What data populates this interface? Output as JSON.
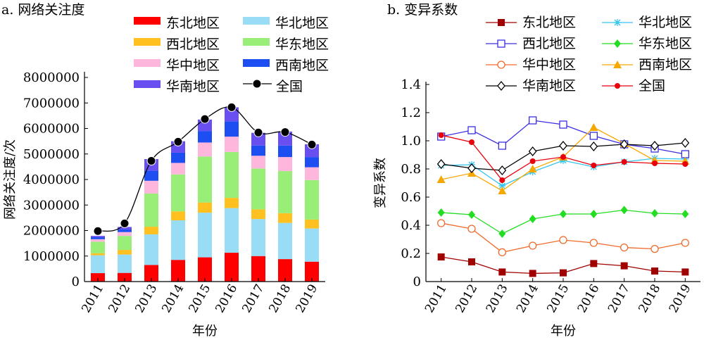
{
  "chart_data": [
    {
      "type": "bar",
      "stacked": true,
      "title": "a. 网络关注度",
      "xlabel": "年份",
      "ylabel": "网络关注度/次",
      "ylim": [
        0,
        8000000
      ],
      "yticks": [
        0,
        1000000,
        2000000,
        3000000,
        4000000,
        5000000,
        6000000,
        7000000,
        8000000
      ],
      "yticklabels": [
        "0",
        "1000000",
        "2000000",
        "3000000",
        "4000000",
        "5000000",
        "6000000",
        "7000000",
        "8000000"
      ],
      "categories": [
        "2011",
        "2012",
        "2013",
        "2014",
        "2015",
        "2016",
        "2017",
        "2018",
        "2019"
      ],
      "legend_position": "top-left",
      "series": [
        {
          "name": "东北地区",
          "color": "#ff0000",
          "values": [
            330000,
            340000,
            650000,
            850000,
            950000,
            1130000,
            1000000,
            880000,
            780000
          ]
        },
        {
          "name": "华北地区",
          "color": "#99dcf5",
          "values": [
            700000,
            720000,
            1200000,
            1550000,
            1750000,
            1750000,
            1450000,
            1420000,
            1300000
          ]
        },
        {
          "name": "西北地区",
          "color": "#ffc020",
          "values": [
            80000,
            180000,
            300000,
            350000,
            400000,
            400000,
            380000,
            380000,
            350000
          ]
        },
        {
          "name": "华东地区",
          "color": "#99ee77",
          "values": [
            450000,
            550000,
            1300000,
            1450000,
            1800000,
            1800000,
            1600000,
            1650000,
            1550000
          ]
        },
        {
          "name": "华中地区",
          "color": "#ffb6dc",
          "values": [
            100000,
            150000,
            500000,
            450000,
            550000,
            600000,
            500000,
            550000,
            500000
          ]
        },
        {
          "name": "西南地区",
          "color": "#1d4ef2",
          "values": [
            80000,
            100000,
            400000,
            400000,
            450000,
            600000,
            400000,
            450000,
            400000
          ]
        },
        {
          "name": "华南地区",
          "color": "#6a4ff0",
          "values": [
            50000,
            100000,
            450000,
            450000,
            450000,
            550000,
            500000,
            550000,
            500000
          ]
        }
      ],
      "line_series": {
        "name": "全国",
        "color": "#000000",
        "values": [
          1980000,
          2280000,
          4730000,
          5480000,
          6370000,
          6830000,
          5840000,
          5860000,
          5370000
        ]
      }
    },
    {
      "type": "line",
      "title": "b. 变异系数",
      "xlabel": "年份",
      "ylabel": "变异系数",
      "ylim": [
        0,
        1.4
      ],
      "yticks": [
        0,
        0.2,
        0.4,
        0.6,
        0.8,
        1.0,
        1.2,
        1.4
      ],
      "yticklabels": [
        "0",
        "0.2",
        "0.4",
        "0.6",
        "0.8",
        "1.0",
        "1.2",
        "1.4"
      ],
      "x": [
        "2011",
        "2012",
        "2013",
        "2014",
        "2015",
        "2016",
        "2017",
        "2018",
        "2019"
      ],
      "legend_position": "top",
      "series": [
        {
          "name": "东北地区",
          "color": "#a00000",
          "marker": "square-filled",
          "values": [
            0.175,
            0.14,
            0.068,
            0.058,
            0.062,
            0.128,
            0.112,
            0.075,
            0.068
          ]
        },
        {
          "name": "华北地区",
          "color": "#33c5ee",
          "marker": "asterisk",
          "values": [
            0.825,
            0.83,
            0.68,
            0.78,
            0.86,
            0.815,
            0.85,
            0.875,
            0.87
          ]
        },
        {
          "name": "西北地区",
          "color": "#3a2ee0",
          "marker": "square-open",
          "values": [
            1.03,
            1.075,
            0.965,
            1.145,
            1.115,
            1.035,
            0.975,
            0.945,
            0.905
          ]
        },
        {
          "name": "华东地区",
          "color": "#22dd22",
          "marker": "diamond-filled",
          "values": [
            0.49,
            0.475,
            0.34,
            0.445,
            0.48,
            0.48,
            0.508,
            0.485,
            0.48
          ]
        },
        {
          "name": "华中地区",
          "color": "#f06a2a",
          "marker": "circle-open",
          "values": [
            0.415,
            0.375,
            0.208,
            0.255,
            0.295,
            0.275,
            0.242,
            0.232,
            0.275
          ]
        },
        {
          "name": "西南地区",
          "color": "#f7a800",
          "marker": "triangle-filled",
          "values": [
            0.725,
            0.77,
            0.645,
            0.8,
            0.885,
            1.095,
            0.98,
            0.86,
            0.855
          ]
        },
        {
          "name": "华南地区",
          "color": "#000000",
          "marker": "diamond-open",
          "values": [
            0.835,
            0.805,
            0.79,
            0.925,
            0.965,
            0.96,
            0.975,
            0.965,
            0.985
          ]
        },
        {
          "name": "全国",
          "color": "#e8000d",
          "marker": "circle-filled",
          "values": [
            1.04,
            0.99,
            0.72,
            0.855,
            0.885,
            0.825,
            0.85,
            0.84,
            0.835
          ]
        }
      ]
    }
  ]
}
